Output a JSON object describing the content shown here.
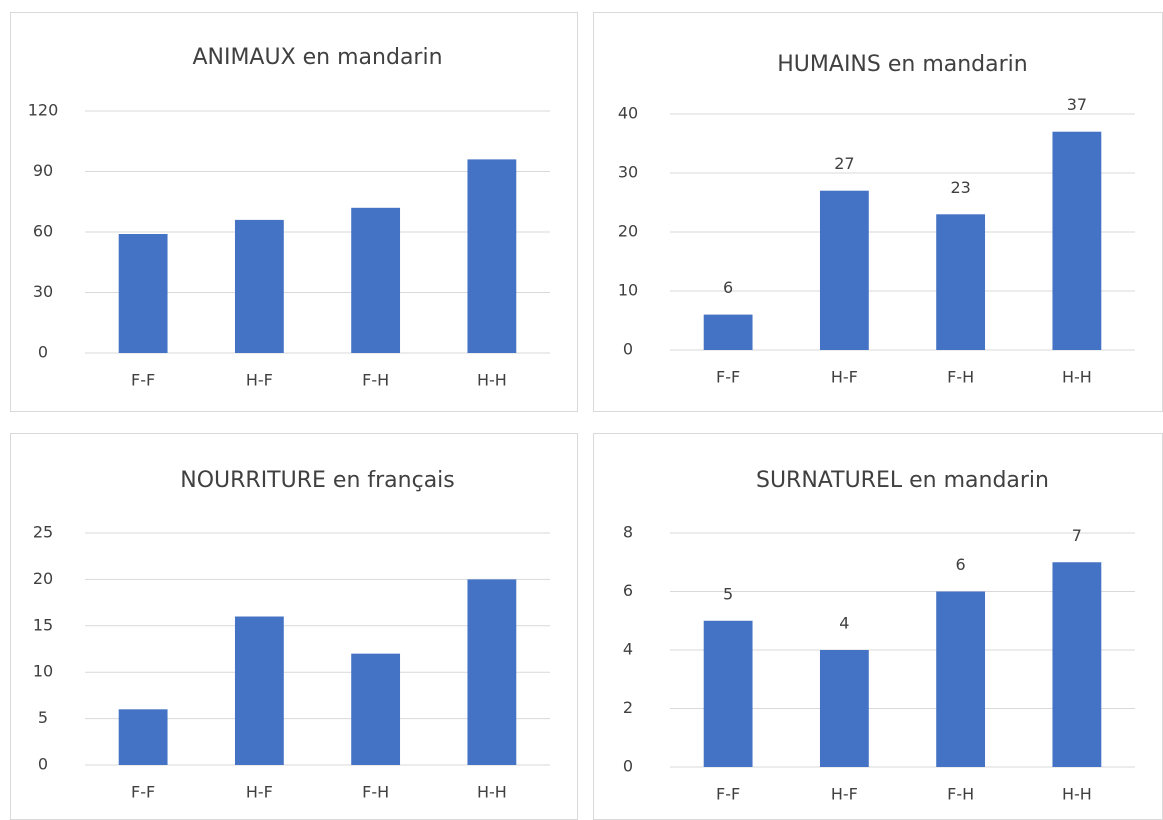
{
  "chart_data": [
    {
      "type": "bar",
      "title": "ANIMAUX en mandarin",
      "categories": [
        "F-F",
        "H-F",
        "F-H",
        "H-H"
      ],
      "values": [
        59,
        66,
        72,
        96
      ],
      "color": "#4472c4",
      "ylim": [
        0,
        120
      ],
      "yticks": [
        0,
        30,
        60,
        90,
        120
      ],
      "grid": true,
      "data_labels": false
    },
    {
      "type": "bar",
      "title": "HUMAINS en mandarin",
      "categories": [
        "F-F",
        "H-F",
        "F-H",
        "H-H"
      ],
      "values": [
        6,
        27,
        23,
        37
      ],
      "color": "#4472c4",
      "ylim": [
        0,
        40
      ],
      "yticks": [
        0,
        10,
        20,
        30,
        40
      ],
      "grid": true,
      "data_labels": true
    },
    {
      "type": "bar",
      "title": "NOURRITURE en français",
      "categories": [
        "F-F",
        "H-F",
        "F-H",
        "H-H"
      ],
      "values": [
        6,
        16,
        12,
        20
      ],
      "color": "#4472c4",
      "ylim": [
        0,
        25
      ],
      "yticks": [
        0,
        5,
        10,
        15,
        20,
        25
      ],
      "grid": true,
      "data_labels": false
    },
    {
      "type": "bar",
      "title": "SURNATUREL en mandarin",
      "categories": [
        "F-F",
        "H-F",
        "F-H",
        "H-H"
      ],
      "values": [
        5,
        4,
        6,
        7
      ],
      "color": "#4472c4",
      "ylim": [
        0,
        8
      ],
      "yticks": [
        0,
        2,
        4,
        6,
        8
      ],
      "grid": true,
      "data_labels": true
    }
  ]
}
